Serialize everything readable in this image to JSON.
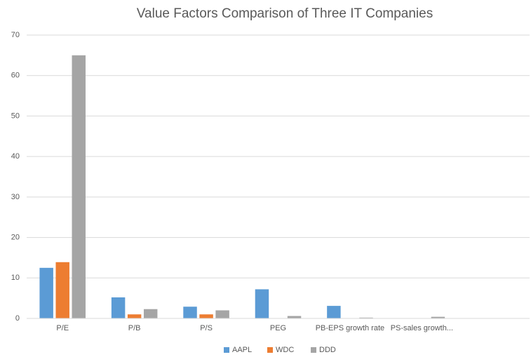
{
  "chart_data": {
    "type": "bar",
    "title": "Value Factors Comparison of Three IT Companies",
    "categories": [
      "P/E",
      "P/B",
      "P/S",
      "PEG",
      "PB-EPS growth rate",
      "PS-sales growth...",
      null
    ],
    "series": [
      {
        "name": "AAPL",
        "color": "#5b9bd5",
        "values": [
          12.5,
          5.2,
          2.9,
          7.2,
          3.1,
          0,
          null
        ]
      },
      {
        "name": "WDC",
        "color": "#ed7d31",
        "values": [
          13.9,
          1.0,
          1.0,
          0,
          0,
          0,
          null
        ]
      },
      {
        "name": "DDD",
        "color": "#a5a5a5",
        "values": [
          65,
          2.3,
          2.0,
          0.6,
          0.2,
          0.4,
          null
        ]
      }
    ],
    "ylim": [
      0,
      70
    ],
    "yticks": [
      0,
      10,
      20,
      30,
      40,
      50,
      60,
      70
    ],
    "grid": true,
    "legend": "bottom"
  }
}
